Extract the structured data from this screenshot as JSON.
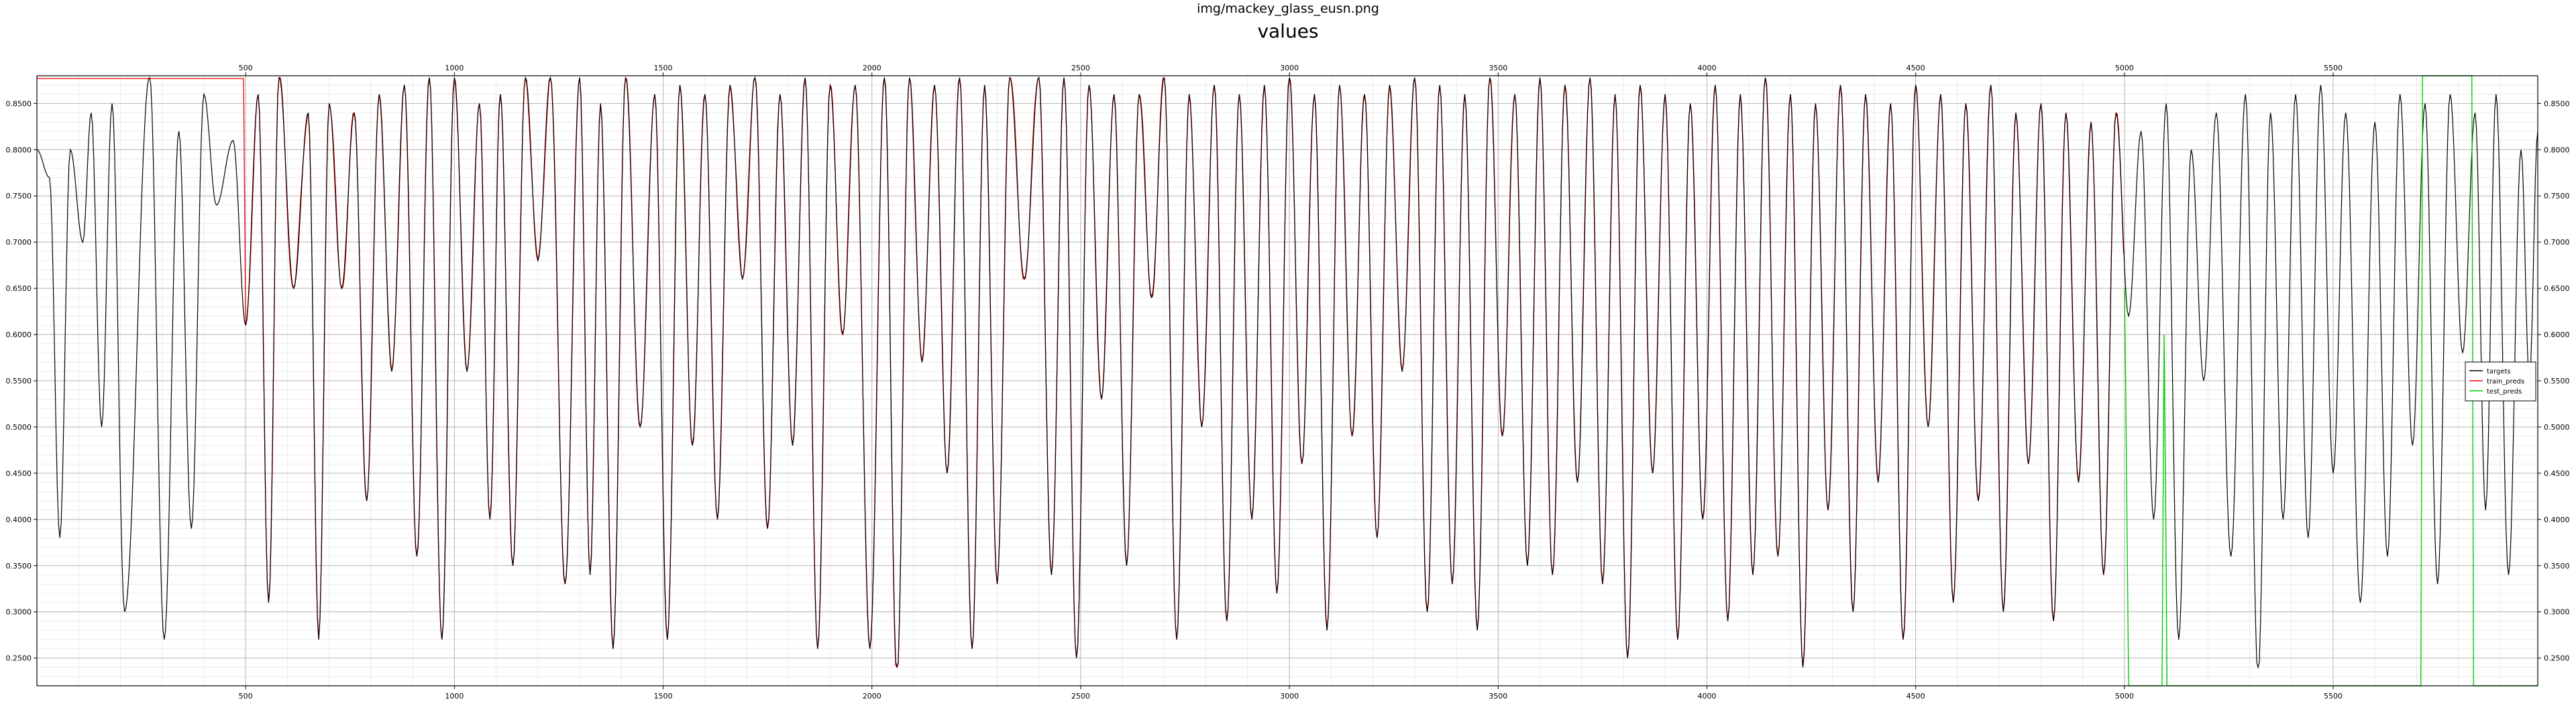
{
  "figure_title": "img/mackey_glass_eusn.png",
  "axes_title": "values",
  "chart_data": {
    "type": "line",
    "title": "values",
    "xlabel": "",
    "ylabel": "",
    "xlim": [
      0,
      5990
    ],
    "ylim": [
      0.22,
      0.88
    ],
    "x_major_ticks": [
      500,
      1000,
      1500,
      2000,
      2500,
      3000,
      3500,
      4000,
      4500,
      5000,
      5500
    ],
    "x_tick_labels": [
      "500",
      "1000",
      "1500",
      "2000",
      "2500",
      "3000",
      "3500",
      "4000",
      "4500",
      "5000",
      "5500"
    ],
    "y_major_ticks": [
      0.25,
      0.3,
      0.35,
      0.4,
      0.45,
      0.5,
      0.55,
      0.6,
      0.65,
      0.7,
      0.75,
      0.8,
      0.85
    ],
    "y_tick_labels": [
      "0.2500",
      "0.3000",
      "0.3500",
      "0.4000",
      "0.4500",
      "0.5000",
      "0.5500",
      "0.6000",
      "0.6500",
      "0.7000",
      "0.7500",
      "0.8000",
      "0.8500"
    ],
    "ticks_on_all_sides": true,
    "grid": true,
    "minor_grid": true,
    "legend_position": "center-right",
    "series": [
      {
        "name": "targets",
        "color": "#000000",
        "x_range": [
          0,
          5990
        ],
        "shape": "quasi-periodic Mackey-Glass oscillation, period about 50 samples, oscillating between roughly 0.24 and 0.88",
        "peaks_x": [
          30,
          80,
          130,
          180,
          270,
          340,
          400,
          470,
          530,
          580,
          650,
          700,
          760,
          820,
          880,
          940,
          1000,
          1060,
          1110,
          1170,
          1230,
          1300,
          1350,
          1410,
          1480,
          1540,
          1600,
          1660,
          1720,
          1780,
          1840,
          1900,
          1960,
          2030,
          2090,
          2150,
          2210,
          2270,
          2330,
          2400,
          2460,
          2520,
          2580,
          2640,
          2700,
          2760,
          2820,
          2880,
          2940,
          3000,
          3060,
          3120,
          3180,
          3240,
          3300,
          3360,
          3420,
          3480,
          3540,
          3600,
          3660,
          3720,
          3780,
          3840,
          3900,
          3960,
          4020,
          4080,
          4140,
          4200,
          4260,
          4320,
          4380,
          4440,
          4500,
          4560,
          4620,
          4680,
          4740,
          4800,
          4860,
          4920,
          4980,
          5040,
          5100,
          5160,
          5220,
          5290,
          5350,
          5410,
          5470,
          5530,
          5600,
          5660,
          5720,
          5780,
          5840,
          5890,
          5950,
          5990
        ],
        "peaks_y": [
          0.77,
          0.8,
          0.84,
          0.85,
          0.88,
          0.82,
          0.86,
          0.81,
          0.86,
          0.88,
          0.84,
          0.85,
          0.84,
          0.86,
          0.87,
          0.88,
          0.88,
          0.85,
          0.86,
          0.88,
          0.88,
          0.88,
          0.85,
          0.88,
          0.86,
          0.87,
          0.86,
          0.87,
          0.88,
          0.86,
          0.88,
          0.87,
          0.87,
          0.88,
          0.88,
          0.87,
          0.88,
          0.87,
          0.88,
          0.88,
          0.88,
          0.87,
          0.86,
          0.86,
          0.88,
          0.86,
          0.87,
          0.86,
          0.87,
          0.88,
          0.86,
          0.87,
          0.86,
          0.87,
          0.88,
          0.87,
          0.86,
          0.88,
          0.86,
          0.88,
          0.87,
          0.88,
          0.86,
          0.87,
          0.86,
          0.85,
          0.87,
          0.86,
          0.88,
          0.86,
          0.85,
          0.87,
          0.86,
          0.85,
          0.87,
          0.86,
          0.85,
          0.87,
          0.84,
          0.85,
          0.84,
          0.83,
          0.84,
          0.82,
          0.85,
          0.8,
          0.84,
          0.86,
          0.84,
          0.86,
          0.87,
          0.84,
          0.83,
          0.86,
          0.85,
          0.86,
          0.84,
          0.86,
          0.8,
          0.82
        ],
        "troughs_x": [
          55,
          110,
          155,
          210,
          305,
          370,
          430,
          500,
          555,
          615,
          675,
          730,
          790,
          850,
          910,
          970,
          1030,
          1085,
          1140,
          1200,
          1265,
          1325,
          1380,
          1445,
          1510,
          1570,
          1630,
          1690,
          1750,
          1810,
          1870,
          1930,
          1995,
          2060,
          2120,
          2180,
          2240,
          2300,
          2365,
          2430,
          2490,
          2550,
          2610,
          2670,
          2730,
          2790,
          2850,
          2910,
          2970,
          3030,
          3090,
          3150,
          3210,
          3270,
          3330,
          3390,
          3450,
          3510,
          3570,
          3630,
          3690,
          3750,
          3810,
          3870,
          3930,
          3990,
          4050,
          4110,
          4170,
          4230,
          4290,
          4350,
          4410,
          4470,
          4530,
          4590,
          4650,
          4710,
          4770,
          4830,
          4890,
          4950,
          5010,
          5070,
          5130,
          5190,
          5255,
          5320,
          5380,
          5440,
          5500,
          5565,
          5630,
          5690,
          5750,
          5810,
          5865,
          5920,
          5970
        ],
        "troughs_y": [
          0.38,
          0.7,
          0.5,
          0.3,
          0.27,
          0.39,
          0.74,
          0.61,
          0.31,
          0.65,
          0.27,
          0.65,
          0.42,
          0.56,
          0.36,
          0.27,
          0.56,
          0.4,
          0.35,
          0.68,
          0.33,
          0.34,
          0.26,
          0.5,
          0.27,
          0.48,
          0.4,
          0.66,
          0.39,
          0.48,
          0.26,
          0.6,
          0.26,
          0.23,
          0.57,
          0.45,
          0.26,
          0.33,
          0.66,
          0.34,
          0.25,
          0.53,
          0.35,
          0.64,
          0.27,
          0.5,
          0.29,
          0.4,
          0.32,
          0.46,
          0.28,
          0.49,
          0.38,
          0.56,
          0.3,
          0.33,
          0.28,
          0.49,
          0.35,
          0.34,
          0.44,
          0.33,
          0.25,
          0.45,
          0.27,
          0.4,
          0.29,
          0.34,
          0.36,
          0.24,
          0.41,
          0.3,
          0.44,
          0.27,
          0.5,
          0.31,
          0.42,
          0.3,
          0.46,
          0.29,
          0.44,
          0.34,
          0.62,
          0.4,
          0.27,
          0.55,
          0.36,
          0.23,
          0.4,
          0.38,
          0.45,
          0.31,
          0.36,
          0.48,
          0.33,
          0.58,
          0.41,
          0.34,
          0.55
        ]
      },
      {
        "name": "train_preds",
        "color": "#ff0000",
        "x_range": [
          0,
          5000
        ],
        "shape": "flat at about 0.877 for x 0 to 500, then closely tracks targets with slight overshoot until about x 5000",
        "flat_start": {
          "x_from": 0,
          "x_to": 495,
          "y": 0.877
        }
      },
      {
        "name": "test_preds",
        "color": "#00cc00",
        "x_range": [
          5000,
          5990
        ],
        "shape": "step-like output switching between about 0.22 and 0.88",
        "points_x": [
          5000,
          5003,
          5006,
          5010,
          5080,
          5090,
          5095,
          5100,
          5102,
          5104,
          5710,
          5712,
          5714,
          5832,
          5834,
          5836,
          5990
        ],
        "points_y": [
          0.65,
          0.55,
          0.4,
          0.22,
          0.22,
          0.22,
          0.6,
          0.35,
          0.22,
          0.22,
          0.22,
          0.5,
          0.88,
          0.88,
          0.6,
          0.22,
          0.22
        ]
      }
    ]
  }
}
